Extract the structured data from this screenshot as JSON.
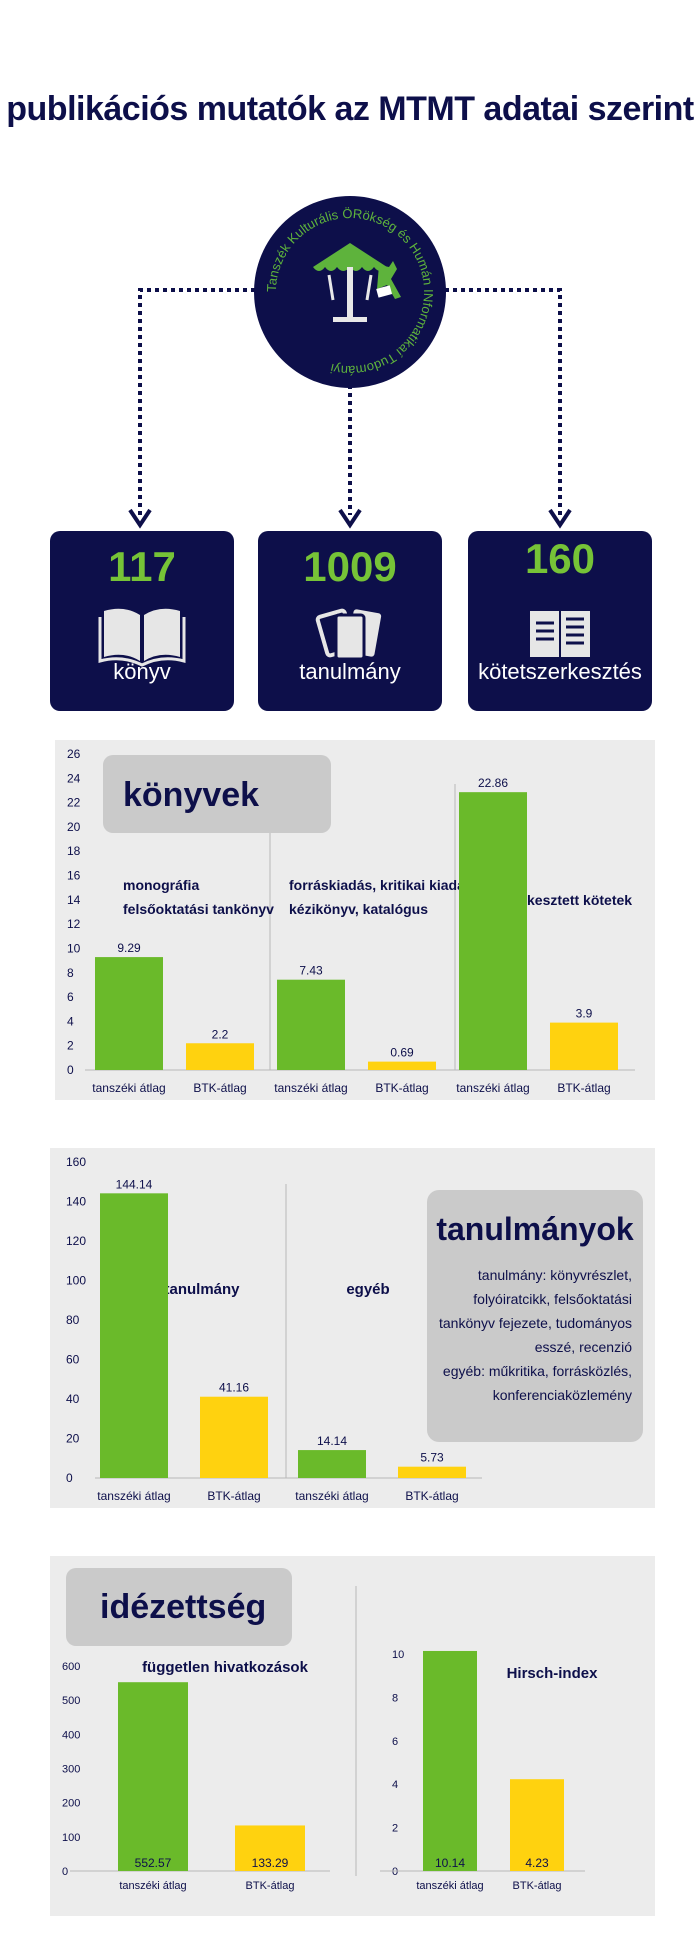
{
  "page": {
    "title": "publikációs mutatók az MTMT adatai szerint"
  },
  "logo": {
    "ring_text": "Tanszék Kulturális ÖRökség és Humán INformatikaí Tudományi",
    "colors": {
      "bg": "#0d0f4a",
      "accent": "#5eb33c",
      "text": "#5eb33c"
    },
    "icon_names": [
      "carousel-icon",
      "reader-icon"
    ]
  },
  "stats": [
    {
      "value": "117",
      "label": "könyv",
      "icon": "open-book-icon"
    },
    {
      "value": "1009",
      "label": "tanulmány",
      "icon": "cards-icon"
    },
    {
      "value": "160",
      "label": "kötetszerkesztés",
      "icon": "document-book-icon"
    }
  ],
  "colors": {
    "navy": "#0d0f4a",
    "green": "#6aba2a",
    "yellow": "#ffd20f",
    "panel": "#ececec",
    "badge": "#cacaca"
  },
  "chart_data": [
    {
      "type": "bar",
      "title": "könyvek",
      "ylim": [
        0,
        26
      ],
      "yticks": [
        0,
        2,
        4,
        6,
        8,
        10,
        12,
        14,
        16,
        18,
        20,
        22,
        24,
        26
      ],
      "groups": [
        {
          "label_lines": [
            "monográfia",
            "felsőoktatási tankönyv"
          ],
          "categories": [
            "tanszéki átlag",
            "BTK-átlag"
          ],
          "values": [
            9.29,
            2.2
          ],
          "value_labels": [
            "9.29",
            "2.2"
          ]
        },
        {
          "label_lines": [
            "forráskiadás, kritikai kiadás,",
            "kézikönyv, katalógus"
          ],
          "categories": [
            "tanszéki átlag",
            "BTK-átlag"
          ],
          "values": [
            7.43,
            0.69
          ],
          "value_labels": [
            "7.43",
            "0.69"
          ]
        },
        {
          "label_lines": [
            "szerkesztett kötetek"
          ],
          "categories": [
            "tanszéki átlag",
            "BTK-átlag"
          ],
          "values": [
            22.86,
            3.9
          ],
          "value_labels": [
            "22.86",
            "3.9"
          ]
        }
      ],
      "series_colors": [
        "#6aba2a",
        "#ffd20f"
      ]
    },
    {
      "type": "bar",
      "title": "tanulmányok",
      "ylim": [
        0,
        160
      ],
      "yticks": [
        0,
        20,
        40,
        60,
        80,
        100,
        120,
        140,
        160
      ],
      "groups": [
        {
          "label_lines": [
            "tanulmány"
          ],
          "categories": [
            "tanszéki átlag",
            "BTK-átlag"
          ],
          "values": [
            144.14,
            41.16
          ],
          "value_labels": [
            "144.14",
            "41.16"
          ]
        },
        {
          "label_lines": [
            "egyéb"
          ],
          "categories": [
            "tanszéki átlag",
            "BTK-átlag"
          ],
          "values": [
            14.14,
            5.73
          ],
          "value_labels": [
            "14.14",
            "5.73"
          ]
        }
      ],
      "note_lines": [
        "tanulmány: könyvrészlet,",
        "folyóiratcikk, felsőoktatási",
        "tankönyv fejezete, tudományos",
        "esszé, recenzió",
        "egyéb: műkritika, forrásközlés,",
        "konferenciaközlemény"
      ],
      "series_colors": [
        "#6aba2a",
        "#ffd20f"
      ]
    },
    {
      "type": "bar",
      "title": "idézettség",
      "subcharts": [
        {
          "label": "független hivatkozások",
          "ylim": [
            0,
            600
          ],
          "yticks": [
            0,
            100,
            200,
            300,
            400,
            500,
            600
          ],
          "categories": [
            "tanszéki átlag",
            "BTK-átlag"
          ],
          "values": [
            552.57,
            133.29
          ],
          "value_labels": [
            "552.57",
            "133.29"
          ]
        },
        {
          "label": "Hirsch-index",
          "ylim": [
            0,
            10
          ],
          "yticks": [
            0,
            2,
            4,
            6,
            8,
            10
          ],
          "categories": [
            "tanszéki átlag",
            "BTK-átlag"
          ],
          "values": [
            10.14,
            4.23
          ],
          "value_labels": [
            "10.14",
            "4.23"
          ]
        }
      ],
      "series_colors": [
        "#6aba2a",
        "#ffd20f"
      ]
    }
  ]
}
